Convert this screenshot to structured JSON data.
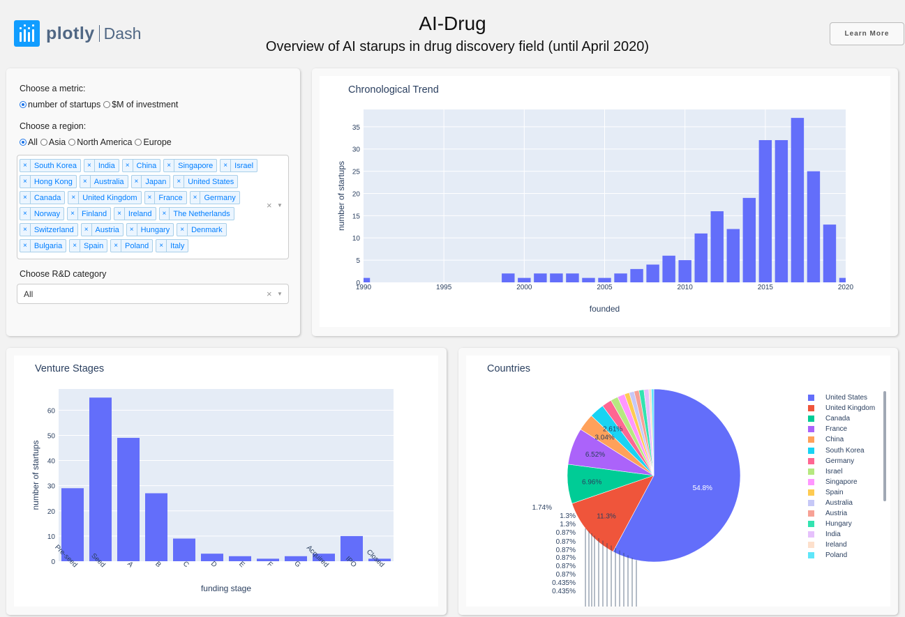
{
  "header": {
    "logo_text": "plotly",
    "logo_dash": "Dash",
    "title": "AI-Drug",
    "subtitle": "Overview of AI starups in drug discovery field (until April 2020)",
    "learn_more": "Learn More"
  },
  "controls": {
    "metric_label": "Choose a metric:",
    "metric_options": [
      "number of startups",
      "$M of investment"
    ],
    "metric_selected": "number of startups",
    "region_label": "Choose a region:",
    "region_options": [
      "All",
      "Asia",
      "North America",
      "Europe"
    ],
    "region_selected": "All",
    "countries": [
      "South Korea",
      "India",
      "China",
      "Singapore",
      "Israel",
      "Hong Kong",
      "Australia",
      "Japan",
      "United States",
      "Canada",
      "United Kingdom",
      "France",
      "Germany",
      "Norway",
      "Finland",
      "Ireland",
      "The Netherlands",
      "Switzerland",
      "Austria",
      "Hungary",
      "Denmark",
      "Bulgaria",
      "Spain",
      "Poland",
      "Italy"
    ],
    "tag_remove": "×",
    "clear_icon": "×",
    "dropdown_icon": "▼",
    "rd_label": "Choose R&D category",
    "rd_value": "All"
  },
  "chart_data": [
    {
      "type": "bar",
      "title": "Chronological Trend",
      "xlabel": "founded",
      "ylabel": "number of startups",
      "x": [
        1990,
        1999,
        2000,
        2001,
        2002,
        2003,
        2004,
        2005,
        2006,
        2007,
        2008,
        2009,
        2010,
        2011,
        2012,
        2013,
        2014,
        2015,
        2016,
        2017,
        2018,
        2019,
        2020
      ],
      "values": [
        1,
        2,
        1,
        2,
        2,
        2,
        1,
        1,
        2,
        3,
        4,
        6,
        5,
        11,
        16,
        12,
        19,
        32,
        32,
        37,
        25,
        13,
        1
      ],
      "xlim": [
        1990,
        2020
      ],
      "ylim": [
        0,
        38.9
      ],
      "xticks": [
        1990,
        1995,
        2000,
        2005,
        2010,
        2015,
        2020
      ],
      "yticks": [
        0,
        5,
        10,
        15,
        20,
        25,
        30,
        35
      ],
      "color": "#636efa"
    },
    {
      "type": "bar",
      "title": "Venture Stages",
      "xlabel": "funding stage",
      "ylabel": "number of startups",
      "categories": [
        "Pre-seed",
        "Seed",
        "A",
        "B",
        "C",
        "D",
        "E",
        "F",
        "G",
        "Acquired",
        "IPO",
        "Closed"
      ],
      "values": [
        29,
        65,
        49,
        27,
        9,
        3,
        2,
        1,
        2,
        3,
        10,
        1
      ],
      "ylim": [
        0,
        68.4
      ],
      "yticks": [
        0,
        10,
        20,
        30,
        40,
        50,
        60
      ],
      "color": "#636efa"
    },
    {
      "type": "pie",
      "title": "Countries",
      "labels": [
        "United States",
        "United Kingdom",
        "Canada",
        "France",
        "China",
        "South Korea",
        "Germany",
        "Israel",
        "Singapore",
        "Spain",
        "Australia",
        "Austria",
        "Hungary",
        "India",
        "Ireland",
        "Poland"
      ],
      "values": [
        54.8,
        11.3,
        6.96,
        6.52,
        3.04,
        2.61,
        1.74,
        1.3,
        1.3,
        0.87,
        0.87,
        0.87,
        0.87,
        0.87,
        0.435,
        0.435
      ],
      "inside_labels": [
        "54.8%",
        "11.3%",
        "6.96%",
        "6.52%",
        "3.04%",
        "2.61%"
      ],
      "outside_labels": [
        "1.74%",
        "1.3%",
        "1.3%",
        "0.87%",
        "0.87%",
        "0.87%",
        "0.87%",
        "0.87%",
        "0.87%",
        "0.435%",
        "0.435%"
      ],
      "colors": [
        "#636efa",
        "#ef553b",
        "#00cc96",
        "#ab63fa",
        "#ffa15a",
        "#19d3f3",
        "#ff6692",
        "#b6e880",
        "#ff97ff",
        "#fecb52",
        "#c6c8f7",
        "#f7a196",
        "#33e3b0",
        "#e6c1fc",
        "#fde0cc",
        "#5fe6f9"
      ]
    }
  ]
}
